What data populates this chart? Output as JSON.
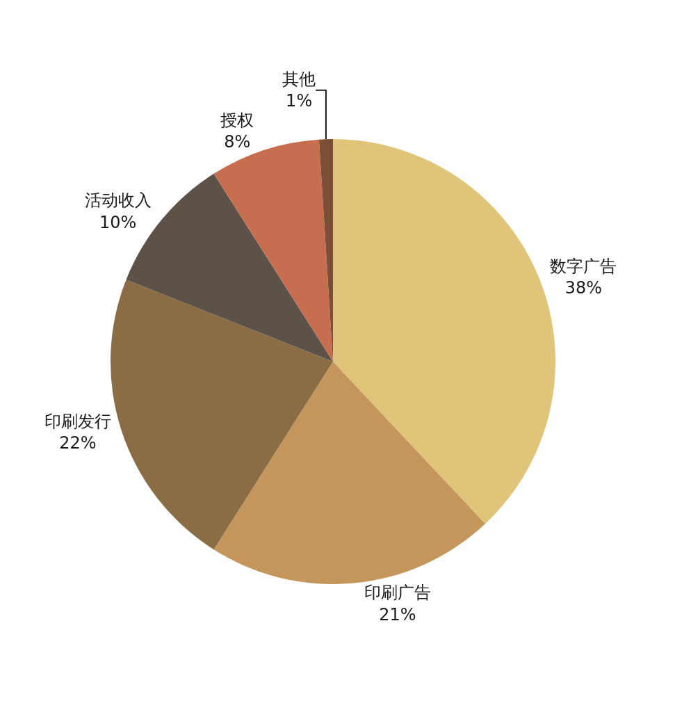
{
  "chart_data": {
    "type": "pie",
    "categories": [
      "数字广告",
      "印刷广告",
      "印刷发行",
      "活动收入",
      "授权",
      "其他"
    ],
    "values": [
      38,
      21,
      22,
      10,
      8,
      1
    ],
    "value_labels": [
      "38%",
      "21%",
      "22%",
      "10%",
      "8%",
      "1%"
    ],
    "colors": [
      "#e0c47a",
      "#c4965c",
      "#8b6d45",
      "#5c5248",
      "#c66e4f",
      "#7a4f35"
    ],
    "legend": false
  }
}
